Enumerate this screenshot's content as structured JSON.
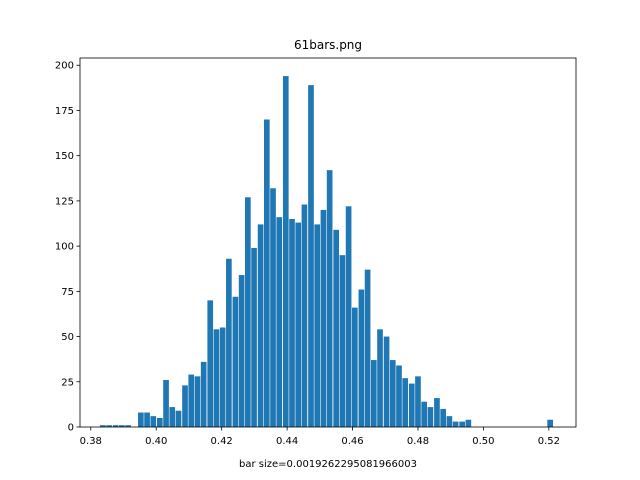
{
  "chart_data": {
    "type": "bar",
    "title": "61bars.png",
    "xlabel": "bar size=0.0019262295081966003",
    "ylabel": "",
    "xlim": [
      0.3767,
      0.5283
    ],
    "ylim": [
      0,
      204
    ],
    "grid": false,
    "bar_width": 0.00173,
    "bar_color": "#1f77b4",
    "x_ticks": [
      0.38,
      0.4,
      0.42,
      0.44,
      0.46,
      0.48,
      0.5,
      0.52
    ],
    "x_tick_labels": [
      "0.38",
      "0.40",
      "0.42",
      "0.44",
      "0.46",
      "0.48",
      "0.50",
      "0.52"
    ],
    "y_ticks": [
      0,
      25,
      50,
      75,
      100,
      125,
      150,
      175,
      200
    ],
    "y_tick_labels": [
      "0",
      "25",
      "50",
      "75",
      "100",
      "125",
      "150",
      "175",
      "200"
    ],
    "x": [
      0.3837,
      0.3856,
      0.3876,
      0.3895,
      0.3914,
      0.3934,
      0.3953,
      0.3972,
      0.3991,
      0.4011,
      0.403,
      0.4049,
      0.4068,
      0.4088,
      0.4107,
      0.4126,
      0.4145,
      0.4165,
      0.4184,
      0.4203,
      0.4222,
      0.4242,
      0.4261,
      0.428,
      0.4299,
      0.4319,
      0.4338,
      0.4357,
      0.4376,
      0.4396,
      0.4415,
      0.4434,
      0.4453,
      0.4473,
      0.4492,
      0.4511,
      0.453,
      0.455,
      0.4569,
      0.4588,
      0.4607,
      0.4627,
      0.4646,
      0.4665,
      0.4684,
      0.4704,
      0.4723,
      0.4742,
      0.4761,
      0.4781,
      0.48,
      0.4819,
      0.4838,
      0.4858,
      0.4877,
      0.4896,
      0.4915,
      0.4935,
      0.4954,
      0.4973,
      0.4992,
      0.5012,
      0.5031,
      0.505,
      0.5069,
      0.5089,
      0.5108,
      0.5127,
      0.5146,
      0.5166,
      0.5185,
      0.5204
    ],
    "values": [
      1,
      1,
      1,
      1,
      1,
      0,
      8,
      8,
      6,
      5,
      26,
      11,
      9,
      23,
      29,
      28,
      36,
      70,
      54,
      55,
      93,
      72,
      84,
      127,
      99,
      112,
      170,
      132,
      116,
      194,
      115,
      113,
      123,
      189,
      112,
      120,
      142,
      109,
      95,
      122,
      66,
      76,
      87,
      37,
      54,
      50,
      37,
      34,
      27,
      24,
      28,
      14,
      11,
      16,
      10,
      6,
      3,
      3,
      4,
      0,
      0,
      0,
      0,
      0,
      0,
      0,
      0,
      0,
      0,
      0,
      0,
      4
    ]
  }
}
